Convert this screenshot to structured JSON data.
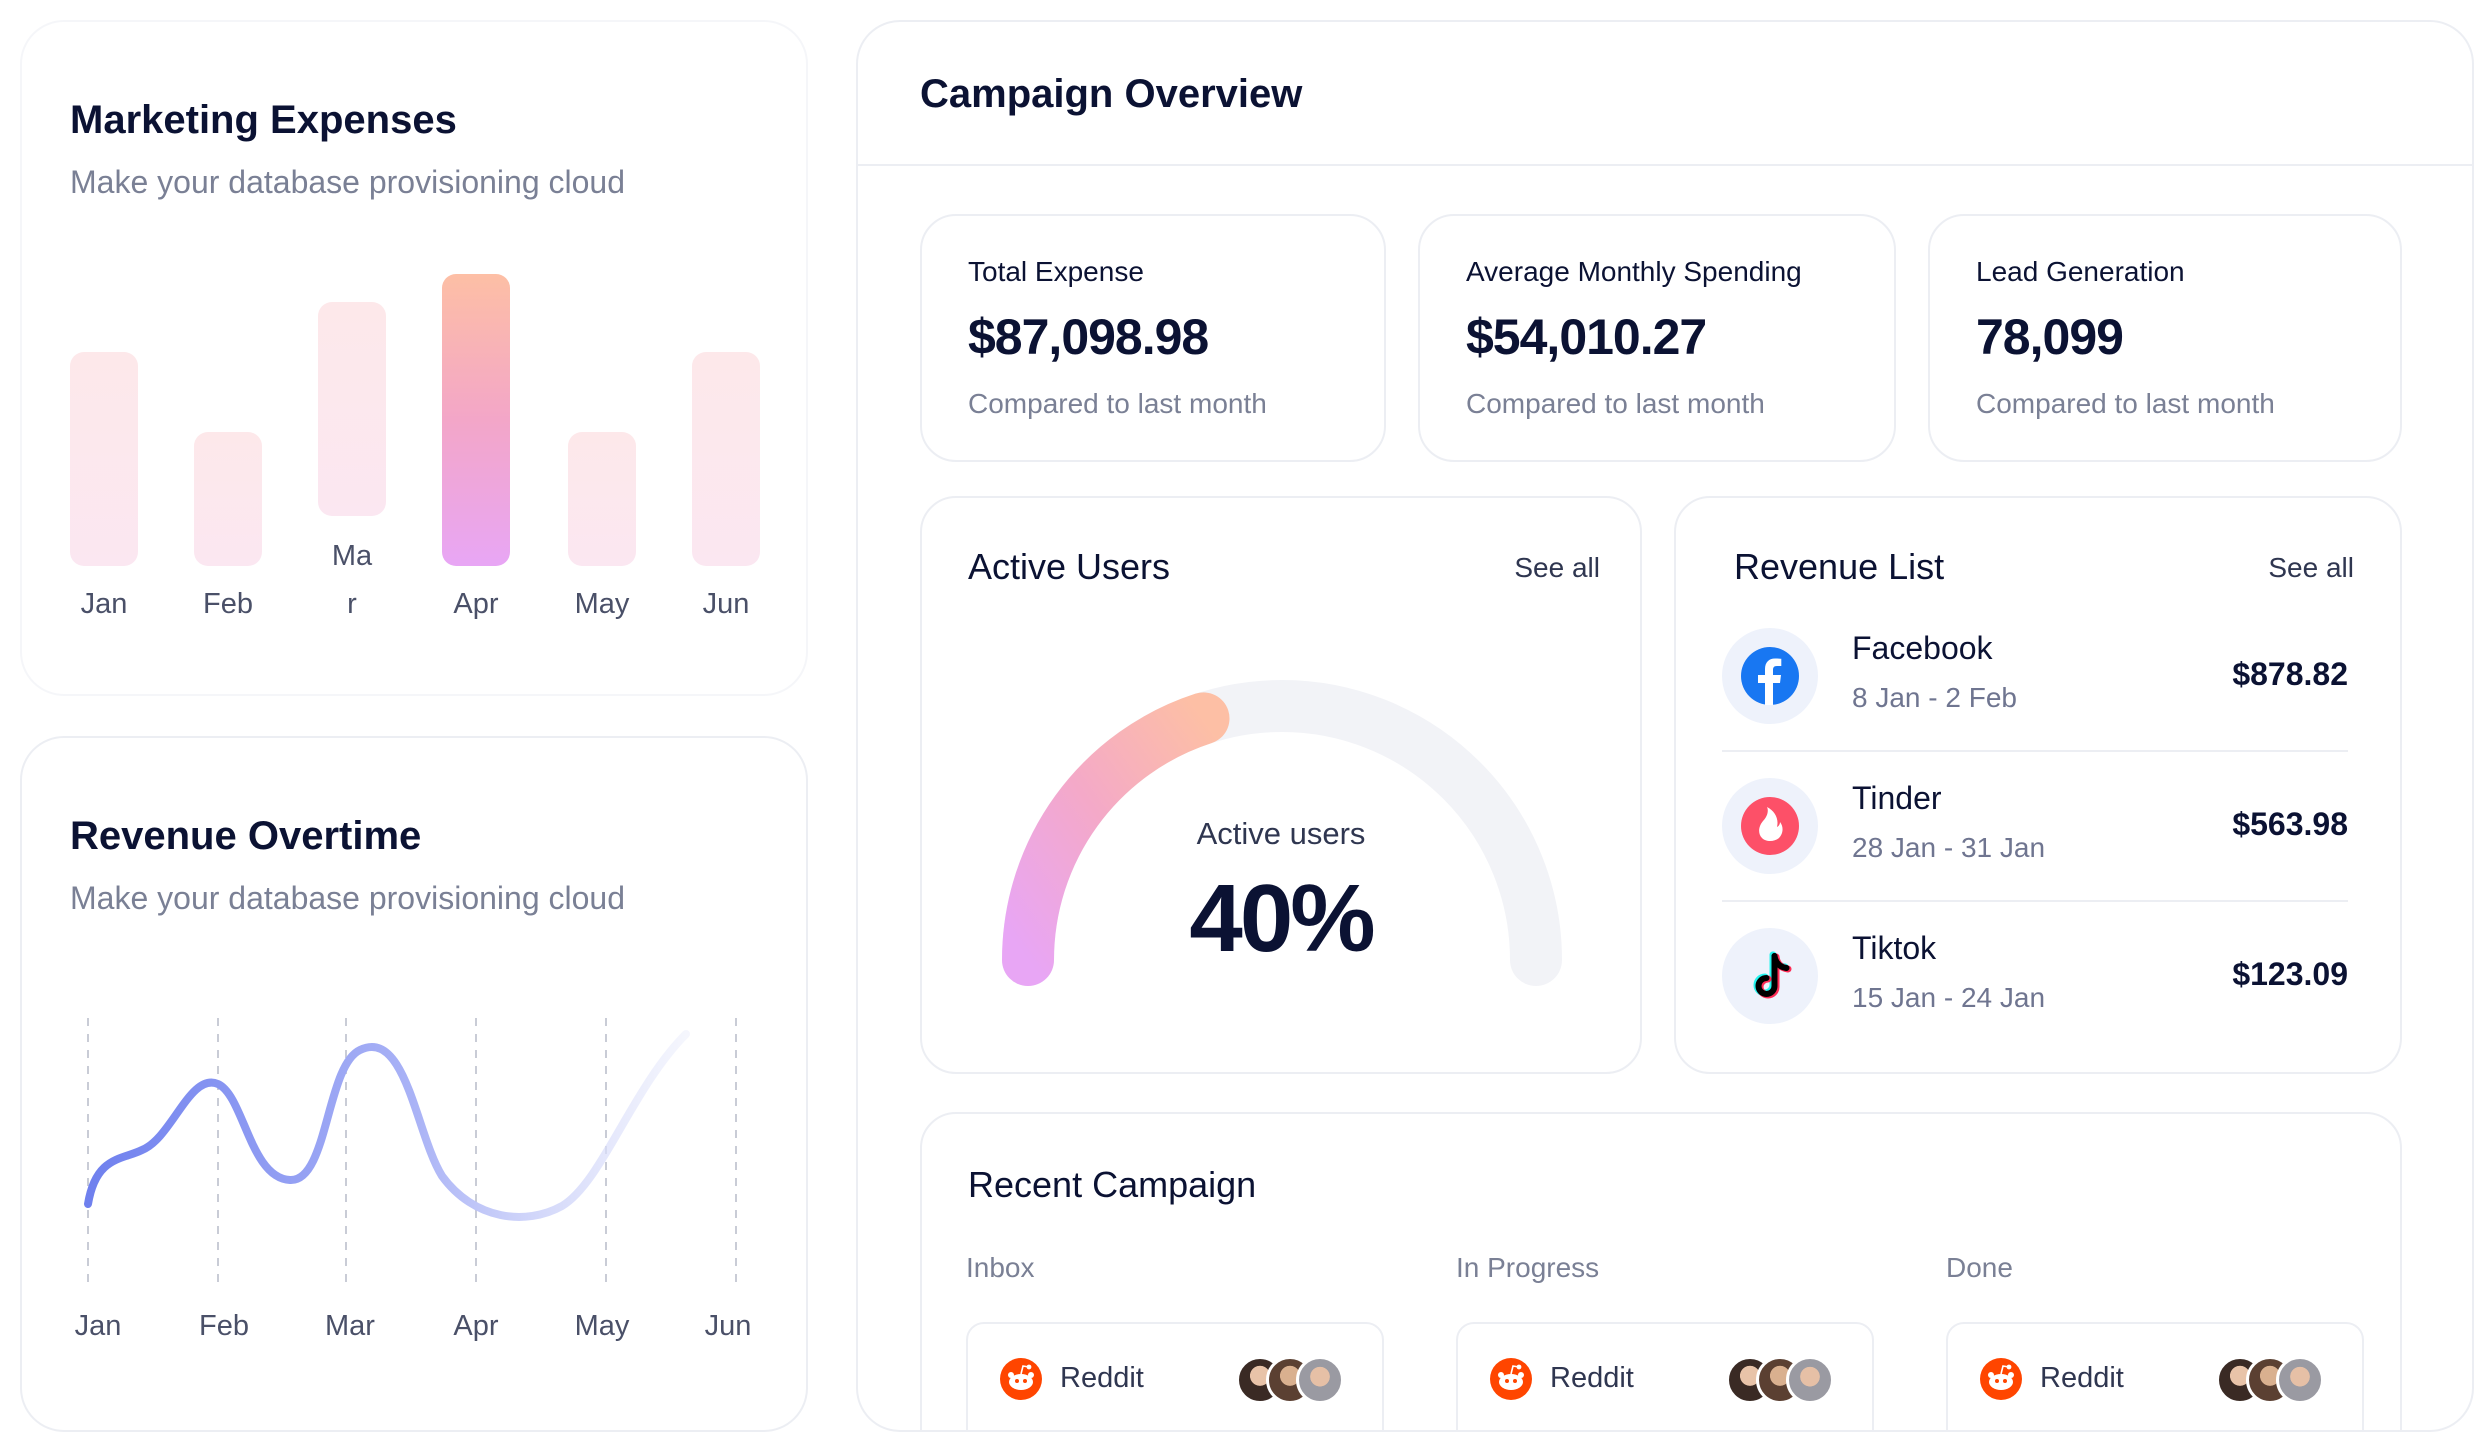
{
  "marketing": {
    "title": "Marketing Expenses",
    "subtitle": "Make your database provisioning cloud",
    "months": [
      "Jan",
      "Feb",
      "Ma\nr",
      "Apr",
      "May",
      "Jun"
    ],
    "active_month": "Apr"
  },
  "revenue_overtime": {
    "title": "Revenue Overtime",
    "subtitle": "Make your database provisioning cloud",
    "months": [
      "Jan",
      "Feb",
      "Mar",
      "Apr",
      "May",
      "Jun"
    ]
  },
  "campaign": {
    "title": "Campaign Overview",
    "stats": [
      {
        "title": "Total Expense",
        "value": "$87,098.98",
        "note": "Compared to last month"
      },
      {
        "title": "Average Monthly Spending",
        "value": "$54,010.27",
        "note": "Compared to last month"
      },
      {
        "title": "Lead Generation",
        "value": "78,099",
        "note": "Compared to last month"
      }
    ],
    "active_users": {
      "title": "Active Users",
      "see_all": "See all",
      "label": "Active users",
      "value": "40%",
      "fraction": 0.4
    },
    "revenue_list": {
      "title": "Revenue List",
      "see_all": "See all",
      "items": [
        {
          "name": "Facebook",
          "dates": "8 Jan - 2 Feb",
          "amount": "$878.82",
          "icon": "facebook-icon"
        },
        {
          "name": "Tinder",
          "dates": "28 Jan - 31 Jan",
          "amount": "$563.98",
          "icon": "tinder-icon"
        },
        {
          "name": "Tiktok",
          "dates": "15 Jan - 24 Jan",
          "amount": "$123.09",
          "icon": "tiktok-icon"
        }
      ]
    },
    "recent": {
      "title": "Recent Campaign",
      "columns": [
        {
          "label": "Inbox",
          "card": "Reddit"
        },
        {
          "label": "In Progress",
          "card": "Reddit"
        },
        {
          "label": "Done",
          "card": "Reddit"
        }
      ]
    }
  },
  "colors": {
    "text": "#0b1233",
    "muted": "#7a8095",
    "line_accent": "#7b8cf0",
    "gauge_start": "#e8a6f5",
    "gauge_end": "#fdbfa5",
    "reddit": "#ff4500",
    "facebook": "#1877f2",
    "tinder": "#fd5068"
  }
}
